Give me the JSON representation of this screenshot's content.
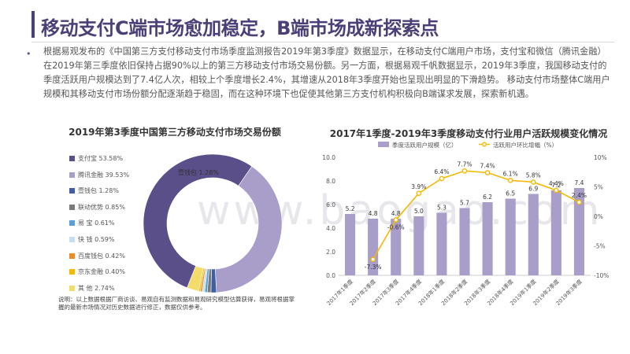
{
  "title": "移动支付C端市场愈加稳定，B端市场成新探索点",
  "bullet": "•",
  "paragraph": "根据易观发布的《中国第三方支付移动支付市场季度监测报告2019年第3季度》数据显示，在移动支付C端用户市场，支付宝和微信（腾讯金融）在2019年第三季度依旧保持占据90%以上的第三方移动支付市场交易份额。另一方面，根据易观千帆数据显示，2019年3季度，我国移动支付的季度活跃用户规模达到了7.4亿人次，相较上个季度增长2.4%，其增速从2018年3季度开始也呈现出明显的下滑趋势。   移动支付市场整体C端用户规模和其移动支付市场份额分配逐渐趋于稳固，而在这种环境下也促使其他第三方支付机构积极向B端谋求发展，探索新机遇。",
  "note": "说明：以上数据根据厂商访谈、易观自有监测数据和易观研究模型估算获得，易观将根据掌握的最新市场情况对历史数据进行修正，数据仅供参考。",
  "watermark": "www.baogao.com",
  "colors": {
    "purple_dark": "#5b4f8a",
    "purple_light": "#a99dc9",
    "gold": "#f5b800",
    "title": "#4c3f77"
  },
  "chart_data": [
    {
      "type": "pie",
      "title": "2019年第3季度中国第三方移动支付市场交易份额",
      "donut": true,
      "slices": [
        {
          "label": "支付宝",
          "display": "支付宝 53.58%",
          "value": 53.58,
          "color": "#5b4f8a"
        },
        {
          "label": "腾讯金融",
          "display": "腾讯金融 39.53%",
          "value": 39.53,
          "color": "#a99dc9"
        },
        {
          "label": "壹钱包",
          "display": "壹钱包 1.28%",
          "value": 1.28,
          "color": "#3e5fa3"
        },
        {
          "label": "联动优势",
          "display": "联动优势 0.85%",
          "value": 0.85,
          "color": "#7a7a7a"
        },
        {
          "label": "易宝",
          "display": "易 宝 0.61%",
          "value": 0.61,
          "color": "#5aa0d8"
        },
        {
          "label": "快钱",
          "display": "快 钱 0.59%",
          "value": 0.59,
          "color": "#c5dff2"
        },
        {
          "label": "百度钱包",
          "display": "百度钱包 0.42%",
          "value": 0.42,
          "color": "#f08a24"
        },
        {
          "label": "京东金融",
          "display": "京东金融 0.40%",
          "value": 0.4,
          "color": "#f5b800"
        },
        {
          "label": "其他",
          "display": "其 他 2.74%",
          "value": 2.74,
          "color": "#f3dc6a"
        }
      ],
      "labels_on_chart": [
        {
          "text": "壹钱包 1.28%"
        },
        {
          "text": "支付宝"
        }
      ],
      "legend": "left"
    },
    {
      "type": "bar",
      "title": "2017年1季度-2019年3季度移动支付行业用户活跃规模变化情况",
      "categories": [
        "2017年1季度",
        "2017年2季度",
        "2017年3季度",
        "2017年4季度",
        "2018年1季度",
        "2018年2季度",
        "2018年3季度",
        "2018年4季度",
        "2019年1季度",
        "2019年2季度",
        "2019年3季度"
      ],
      "series": [
        {
          "name": "季度活跃用户规模（亿）",
          "type": "bar",
          "axis": "left",
          "color": "#a99dc9",
          "values": [
            5.2,
            4.8,
            4.8,
            5.0,
            5.3,
            5.7,
            6.2,
            6.5,
            6.9,
            7.2,
            7.4
          ],
          "labels": [
            "5.2",
            "4.8",
            "4.8",
            "5.0",
            "5.3",
            "5.7",
            "6.2",
            "6.5",
            "6.9",
            "7.2",
            "7.4"
          ]
        },
        {
          "name": "活跃用户环比增幅（%）",
          "type": "line",
          "axis": "right",
          "color": "#f5b800",
          "values": [
            null,
            -7.3,
            -0.6,
            3.9,
            6.4,
            7.7,
            7.4,
            6.1,
            5.8,
            4.4,
            2.4
          ],
          "labels": [
            "",
            "-7.3%",
            "-0.6%",
            "3.9%",
            "6.4%",
            "7.7%",
            "7.4%",
            "6.1%",
            "5.8%",
            "4.4%",
            "2.4%"
          ]
        }
      ],
      "y_left": {
        "min": 0,
        "max": 10,
        "ticks": [
          "0.0",
          "2.0",
          "4.0",
          "6.0",
          "8.0",
          "10.0"
        ],
        "tick_values": [
          0,
          2,
          4,
          6,
          8,
          10
        ]
      },
      "y_right": {
        "min": -10,
        "max": 10,
        "ticks": [
          "-10%",
          "-5%",
          "0%",
          "5%",
          "10%"
        ],
        "tick_values": [
          -10,
          -5,
          0,
          5,
          10
        ]
      },
      "legend": "top"
    }
  ]
}
